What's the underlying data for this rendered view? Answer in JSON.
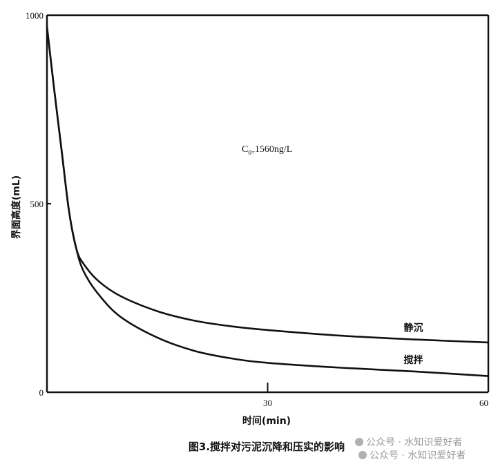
{
  "chart_data": {
    "type": "line",
    "title": "",
    "xlabel": "时间(min)",
    "ylabel": "界面高度(mL)",
    "xlim": [
      0,
      60
    ],
    "ylim": [
      0,
      1000
    ],
    "x_ticks": [
      "30",
      "60"
    ],
    "y_ticks": [
      "0",
      "500",
      "1000"
    ],
    "grid": false,
    "annotation": "C0=1560ng/L",
    "annotation_main": "C",
    "annotation_sub": "0=",
    "annotation_rest": "1560ng/L",
    "series": [
      {
        "name": "静沉",
        "x": [
          0,
          1,
          2,
          3,
          4,
          5,
          7,
          10,
          15,
          20,
          25,
          30,
          40,
          50,
          60
        ],
        "y": [
          970,
          800,
          640,
          480,
          380,
          340,
          295,
          255,
          215,
          190,
          175,
          165,
          150,
          140,
          132
        ]
      },
      {
        "name": "搅拌",
        "x": [
          0,
          1,
          2,
          3,
          4,
          5,
          7,
          10,
          15,
          20,
          25,
          30,
          40,
          50,
          60
        ],
        "y": [
          970,
          800,
          640,
          480,
          380,
          320,
          260,
          200,
          145,
          110,
          90,
          78,
          65,
          55,
          43
        ]
      }
    ]
  },
  "caption": "图3.搅拌对污泥沉降和压实的影响",
  "watermark": {
    "line1": "公众号 · 水知识爱好者",
    "line2": "公众号 · 水知识爱好者"
  }
}
